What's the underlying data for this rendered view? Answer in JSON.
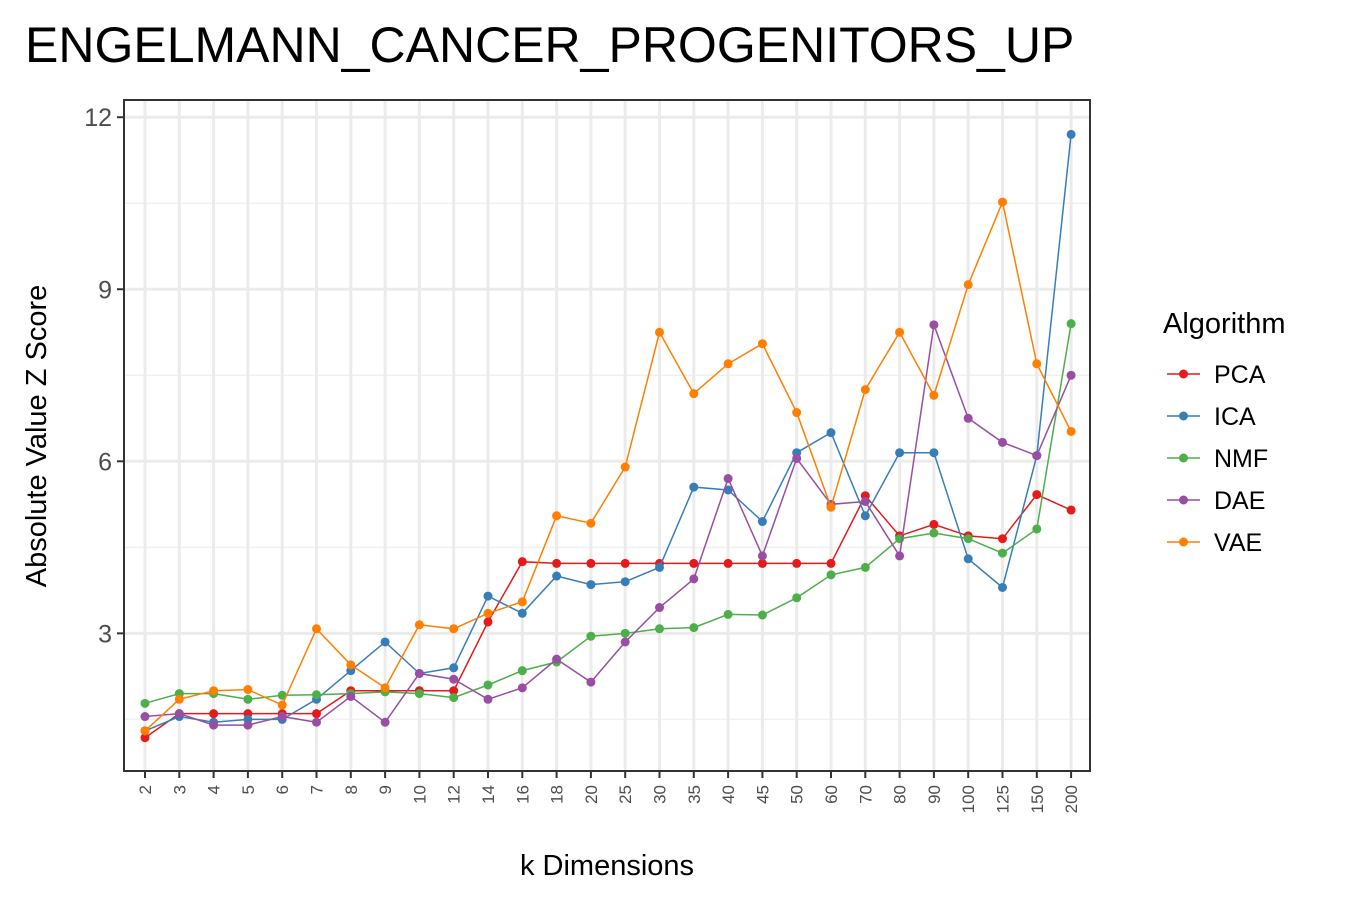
{
  "chart_data": {
    "type": "line",
    "title": "ENGELMANN_CANCER_PROGENITORS_UP",
    "xlabel": "k Dimensions",
    "ylabel": "Absolute Value Z Score",
    "categories": [
      "2",
      "3",
      "4",
      "5",
      "6",
      "7",
      "8",
      "9",
      "10",
      "12",
      "14",
      "16",
      "18",
      "20",
      "25",
      "30",
      "35",
      "40",
      "45",
      "50",
      "60",
      "70",
      "80",
      "90",
      "100",
      "125",
      "150",
      "200"
    ],
    "yticks": [
      3,
      6,
      9,
      12
    ],
    "ylim": [
      0.6,
      12.3
    ],
    "grid": true,
    "legend": {
      "title": "Algorithm",
      "position": "right"
    },
    "series": [
      {
        "name": "PCA",
        "color": "#e41a1c",
        "values": [
          1.18,
          1.6,
          1.6,
          1.6,
          1.6,
          1.6,
          2.0,
          2.0,
          2.0,
          2.0,
          3.2,
          4.25,
          4.22,
          4.22,
          4.22,
          4.22,
          4.22,
          4.22,
          4.22,
          4.22,
          4.22,
          5.4,
          4.7,
          4.9,
          4.7,
          4.65,
          5.42,
          5.15
        ]
      },
      {
        "name": "ICA",
        "color": "#377eb8",
        "values": [
          1.3,
          1.55,
          1.45,
          1.5,
          1.5,
          1.85,
          2.35,
          2.85,
          2.3,
          2.4,
          3.65,
          3.35,
          4.0,
          3.85,
          3.9,
          4.15,
          5.55,
          5.5,
          4.95,
          6.15,
          6.5,
          5.05,
          6.15,
          6.15,
          4.3,
          3.8,
          6.1,
          11.7
        ]
      },
      {
        "name": "NMF",
        "color": "#4daf4a",
        "values": [
          1.78,
          1.95,
          1.95,
          1.85,
          1.92,
          1.93,
          1.95,
          1.98,
          1.95,
          1.88,
          2.1,
          2.35,
          2.5,
          2.95,
          3.0,
          3.08,
          3.1,
          3.33,
          3.32,
          3.62,
          4.02,
          4.15,
          4.65,
          4.75,
          4.65,
          4.4,
          4.82,
          8.4
        ]
      },
      {
        "name": "DAE",
        "color": "#984ea3",
        "values": [
          1.55,
          1.6,
          1.4,
          1.4,
          1.55,
          1.45,
          1.9,
          1.45,
          2.3,
          2.2,
          1.85,
          2.05,
          2.55,
          2.15,
          2.85,
          3.45,
          3.95,
          5.7,
          4.35,
          6.05,
          5.25,
          5.3,
          4.35,
          8.38,
          6.75,
          6.33,
          6.1,
          7.5
        ]
      },
      {
        "name": "VAE",
        "color": "#ff7f00",
        "values": [
          1.3,
          1.85,
          2.0,
          2.02,
          1.75,
          3.08,
          2.45,
          2.05,
          3.15,
          3.08,
          3.35,
          3.55,
          5.05,
          4.92,
          5.9,
          8.25,
          7.18,
          7.7,
          8.05,
          6.85,
          5.2,
          7.25,
          8.25,
          7.15,
          9.08,
          10.52,
          7.7,
          6.52
        ]
      }
    ]
  }
}
